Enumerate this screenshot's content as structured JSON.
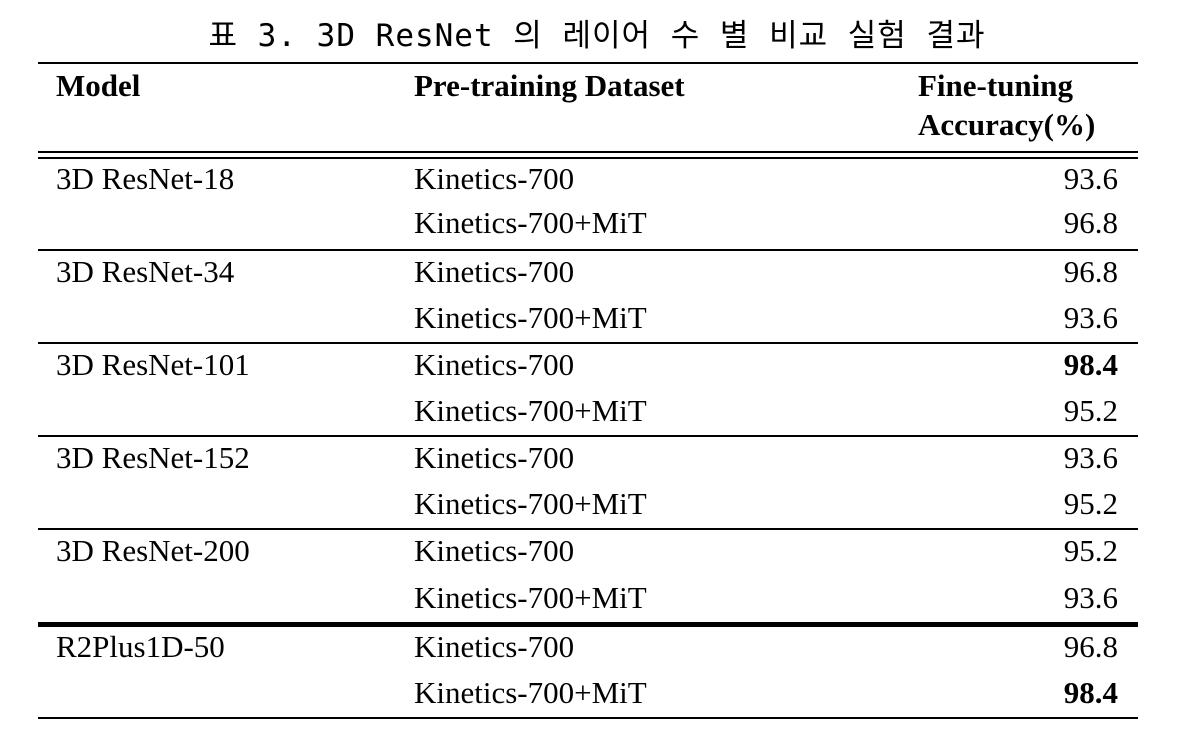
{
  "caption": "표 3. 3D ResNet 의 레이어 수 별 비교 실험 결과",
  "headers": {
    "model": "Model",
    "dataset": "Pre-training Dataset",
    "accuracy_line1": "Fine-tuning",
    "accuracy_line2": "Accuracy(%)"
  },
  "groups": [
    {
      "model": "3D ResNet-18",
      "rows": [
        {
          "dataset": "Kinetics-700",
          "accuracy": "93.6",
          "bold": false
        },
        {
          "dataset": "Kinetics-700+MiT",
          "accuracy": "96.8",
          "bold": false
        }
      ]
    },
    {
      "model": "3D ResNet-34",
      "rows": [
        {
          "dataset": "Kinetics-700",
          "accuracy": "96.8",
          "bold": false
        },
        {
          "dataset": "Kinetics-700+MiT",
          "accuracy": "93.6",
          "bold": false
        }
      ]
    },
    {
      "model": "3D ResNet-101",
      "rows": [
        {
          "dataset": "Kinetics-700",
          "accuracy": "98.4",
          "bold": true
        },
        {
          "dataset": "Kinetics-700+MiT",
          "accuracy": "95.2",
          "bold": false
        }
      ]
    },
    {
      "model": "3D ResNet-152",
      "rows": [
        {
          "dataset": "Kinetics-700",
          "accuracy": "93.6",
          "bold": false
        },
        {
          "dataset": "Kinetics-700+MiT",
          "accuracy": "95.2",
          "bold": false
        }
      ]
    },
    {
      "model": "3D ResNet-200",
      "rows": [
        {
          "dataset": "Kinetics-700",
          "accuracy": "95.2",
          "bold": false
        },
        {
          "dataset": "Kinetics-700+MiT",
          "accuracy": "93.6",
          "bold": false
        }
      ]
    },
    {
      "model": "R2Plus1D-50",
      "rows": [
        {
          "dataset": "Kinetics-700",
          "accuracy": "96.8",
          "bold": false
        },
        {
          "dataset": "Kinetics-700+MiT",
          "accuracy": "98.4",
          "bold": true
        }
      ]
    }
  ]
}
